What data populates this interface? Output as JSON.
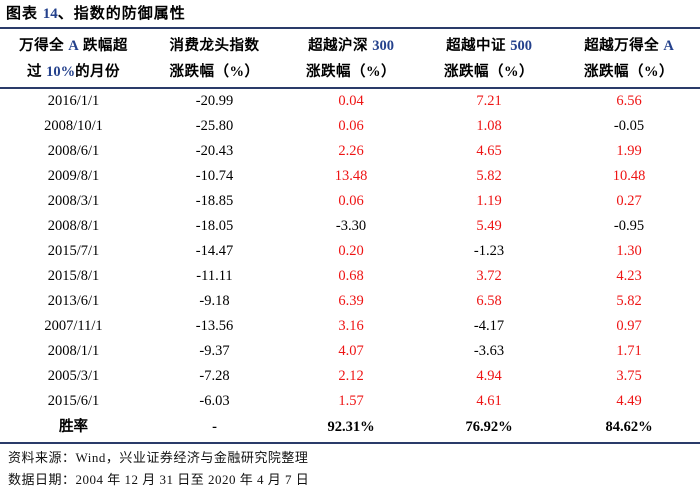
{
  "title": {
    "prefix": "图表 ",
    "number": "14",
    "suffix": "、指数的防御属性"
  },
  "table": {
    "columns": [
      {
        "line1": [
          [
            "万得全 ",
            0
          ],
          [
            "A",
            1
          ],
          [
            " 跌幅超",
            0
          ]
        ],
        "line2": [
          [
            "过 ",
            0
          ],
          [
            "10%",
            1
          ],
          [
            "的月份",
            0
          ]
        ]
      },
      {
        "line1": [
          [
            "消费龙头指数",
            0
          ]
        ],
        "line2": [
          [
            "涨跌幅（%）",
            0
          ]
        ]
      },
      {
        "line1": [
          [
            "超越沪深 ",
            0
          ],
          [
            "300",
            1
          ]
        ],
        "line2": [
          [
            "涨跌幅（%）",
            0
          ]
        ]
      },
      {
        "line1": [
          [
            "超越中证 ",
            0
          ],
          [
            "500",
            1
          ]
        ],
        "line2": [
          [
            "涨跌幅（%）",
            0
          ]
        ]
      },
      {
        "line1": [
          [
            "超越万得全 ",
            0
          ],
          [
            "A",
            1
          ]
        ],
        "line2": [
          [
            "涨跌幅（%）",
            0
          ]
        ]
      }
    ],
    "rows": [
      {
        "cells": [
          {
            "t": "2016/1/1",
            "red": false
          },
          {
            "t": "-20.99",
            "red": false
          },
          {
            "t": "0.04",
            "red": true
          },
          {
            "t": "7.21",
            "red": true
          },
          {
            "t": "6.56",
            "red": true
          }
        ]
      },
      {
        "cells": [
          {
            "t": "2008/10/1",
            "red": false
          },
          {
            "t": "-25.80",
            "red": false
          },
          {
            "t": "0.06",
            "red": true
          },
          {
            "t": "1.08",
            "red": true
          },
          {
            "t": "-0.05",
            "red": false
          }
        ]
      },
      {
        "cells": [
          {
            "t": "2008/6/1",
            "red": false
          },
          {
            "t": "-20.43",
            "red": false
          },
          {
            "t": "2.26",
            "red": true
          },
          {
            "t": "4.65",
            "red": true
          },
          {
            "t": "1.99",
            "red": true
          }
        ]
      },
      {
        "cells": [
          {
            "t": "2009/8/1",
            "red": false
          },
          {
            "t": "-10.74",
            "red": false
          },
          {
            "t": "13.48",
            "red": true
          },
          {
            "t": "5.82",
            "red": true
          },
          {
            "t": "10.48",
            "red": true
          }
        ]
      },
      {
        "cells": [
          {
            "t": "2008/3/1",
            "red": false
          },
          {
            "t": "-18.85",
            "red": false
          },
          {
            "t": "0.06",
            "red": true
          },
          {
            "t": "1.19",
            "red": true
          },
          {
            "t": "0.27",
            "red": true
          }
        ]
      },
      {
        "cells": [
          {
            "t": "2008/8/1",
            "red": false
          },
          {
            "t": "-18.05",
            "red": false
          },
          {
            "t": "-3.30",
            "red": false
          },
          {
            "t": "5.49",
            "red": true
          },
          {
            "t": "-0.95",
            "red": false
          }
        ]
      },
      {
        "cells": [
          {
            "t": "2015/7/1",
            "red": false
          },
          {
            "t": "-14.47",
            "red": false
          },
          {
            "t": "0.20",
            "red": true
          },
          {
            "t": "-1.23",
            "red": false
          },
          {
            "t": "1.30",
            "red": true
          }
        ]
      },
      {
        "cells": [
          {
            "t": "2015/8/1",
            "red": false
          },
          {
            "t": "-11.11",
            "red": false
          },
          {
            "t": "0.68",
            "red": true
          },
          {
            "t": "3.72",
            "red": true
          },
          {
            "t": "4.23",
            "red": true
          }
        ]
      },
      {
        "cells": [
          {
            "t": "2013/6/1",
            "red": false
          },
          {
            "t": "-9.18",
            "red": false
          },
          {
            "t": "6.39",
            "red": true
          },
          {
            "t": "6.58",
            "red": true
          },
          {
            "t": "5.82",
            "red": true
          }
        ]
      },
      {
        "cells": [
          {
            "t": "2007/11/1",
            "red": false
          },
          {
            "t": "-13.56",
            "red": false
          },
          {
            "t": "3.16",
            "red": true
          },
          {
            "t": "-4.17",
            "red": false
          },
          {
            "t": "0.97",
            "red": true
          }
        ]
      },
      {
        "cells": [
          {
            "t": "2008/1/1",
            "red": false
          },
          {
            "t": "-9.37",
            "red": false
          },
          {
            "t": "4.07",
            "red": true
          },
          {
            "t": "-3.63",
            "red": false
          },
          {
            "t": "1.71",
            "red": true
          }
        ]
      },
      {
        "cells": [
          {
            "t": "2005/3/1",
            "red": false
          },
          {
            "t": "-7.28",
            "red": false
          },
          {
            "t": "2.12",
            "red": true
          },
          {
            "t": "4.94",
            "red": true
          },
          {
            "t": "3.75",
            "red": true
          }
        ]
      },
      {
        "cells": [
          {
            "t": "2015/6/1",
            "red": false
          },
          {
            "t": "-6.03",
            "red": false
          },
          {
            "t": "1.57",
            "red": true
          },
          {
            "t": "4.61",
            "red": true
          },
          {
            "t": "4.49",
            "red": true
          }
        ]
      }
    ],
    "summary": {
      "label": "胜率",
      "values": [
        "-",
        "92.31%",
        "76.92%",
        "84.62%"
      ]
    }
  },
  "footer": {
    "source": "资料来源：Wind，兴业证券经济与金融研究院整理",
    "date": "数据日期：2004 年 12 月 31 日至 2020 年 4 月 7 日"
  },
  "colors": {
    "red": "#ee1414",
    "navy_latin": "#24418c",
    "rule_navy": "#2a3b69"
  }
}
